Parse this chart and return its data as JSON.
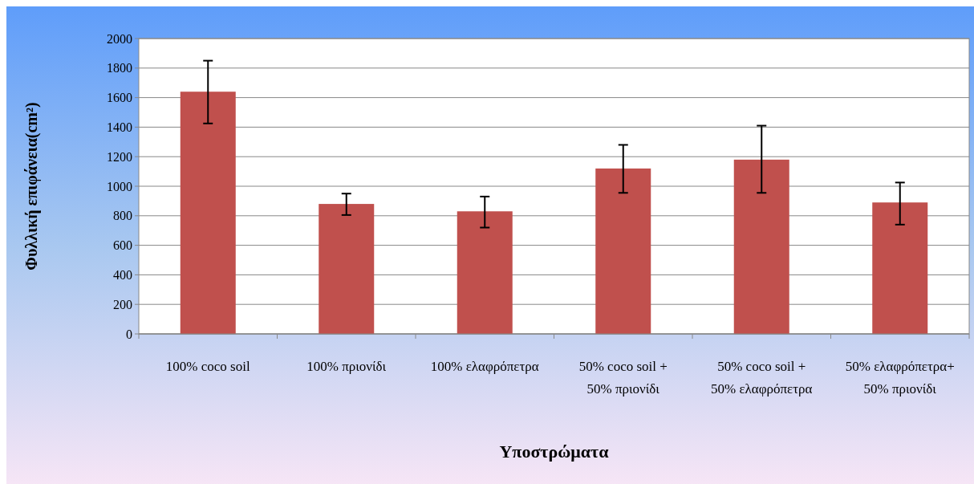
{
  "chart_data": {
    "type": "bar",
    "xlabel": "Υποστρώματα",
    "ylabel": "Φυλλική επιφάνεια(cm²)",
    "categories": [
      "100% coco soil",
      "100% πριονίδι",
      "100% ελαφρόπετρα",
      "50% coco soil + 50% πριονίδι",
      "50% coco soil + 50% ελαφρόπετρα",
      "50% ελαφρόπετρα+ 50% πριονίδι"
    ],
    "values": [
      1640,
      880,
      830,
      1120,
      1180,
      890
    ],
    "errors": [
      [
        1425,
        1850
      ],
      [
        805,
        950
      ],
      [
        720,
        930
      ],
      [
        955,
        1280
      ],
      [
        955,
        1410
      ],
      [
        740,
        1025
      ]
    ],
    "color": "#c0504d",
    "ylim": [
      0,
      2000
    ],
    "yticks": [
      0,
      200,
      400,
      600,
      800,
      1000,
      1200,
      1400,
      1600,
      1800,
      2000
    ],
    "grid": "y"
  }
}
